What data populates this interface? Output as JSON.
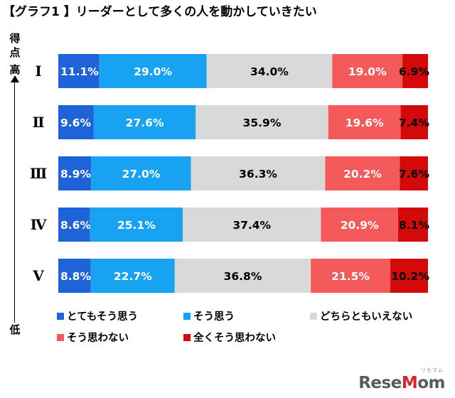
{
  "title": "【グラフ1 】リーダーとして多くの人を動かしていきたい",
  "score_axis": {
    "top_chars": [
      "得",
      "点",
      "高"
    ],
    "bottom_char": "低"
  },
  "colors": [
    "#1f63d8",
    "#17a3f2",
    "#d9d9d9",
    "#f55a5a",
    "#d40a0a"
  ],
  "watermark": {
    "main": "ReseMom",
    "accent_letter": "M",
    "sub": "リセマム"
  },
  "chart_data": {
    "type": "bar",
    "orientation": "horizontal",
    "stacked": true,
    "percent_stacked": true,
    "categories": [
      "Ⅰ",
      "Ⅱ",
      "Ⅲ",
      "Ⅳ",
      "Ⅴ"
    ],
    "series": [
      {
        "name": "とてもそう思う",
        "values": [
          11.1,
          9.6,
          8.9,
          8.6,
          8.8
        ],
        "labels": [
          "11.1%",
          "9.6%",
          "8.9%",
          "8.6%",
          "8.8%"
        ]
      },
      {
        "name": "そう思う",
        "values": [
          29.0,
          27.6,
          27.0,
          25.1,
          22.7
        ],
        "labels": [
          "29.0%",
          "27.6%",
          "27.0%",
          "25.1%",
          "22.7%"
        ]
      },
      {
        "name": "どちらともいえない",
        "values": [
          34.0,
          35.9,
          36.3,
          37.4,
          36.8
        ],
        "labels": [
          "34.0%",
          "35.9%",
          "36.3%",
          "37.4%",
          "36.8%"
        ]
      },
      {
        "name": "そう思わない",
        "values": [
          19.0,
          19.6,
          20.2,
          20.9,
          21.5
        ],
        "labels": [
          "19.0%",
          "19.6%",
          "20.2%",
          "20.9%",
          "21.5%"
        ]
      },
      {
        "name": "全くそう思わない",
        "values": [
          6.9,
          7.4,
          7.6,
          8.1,
          10.2
        ],
        "labels": [
          "6.9%",
          "7.4%",
          "7.6%",
          "8.1%",
          "10.2%"
        ]
      }
    ],
    "legend_position": "bottom",
    "grid": false
  }
}
